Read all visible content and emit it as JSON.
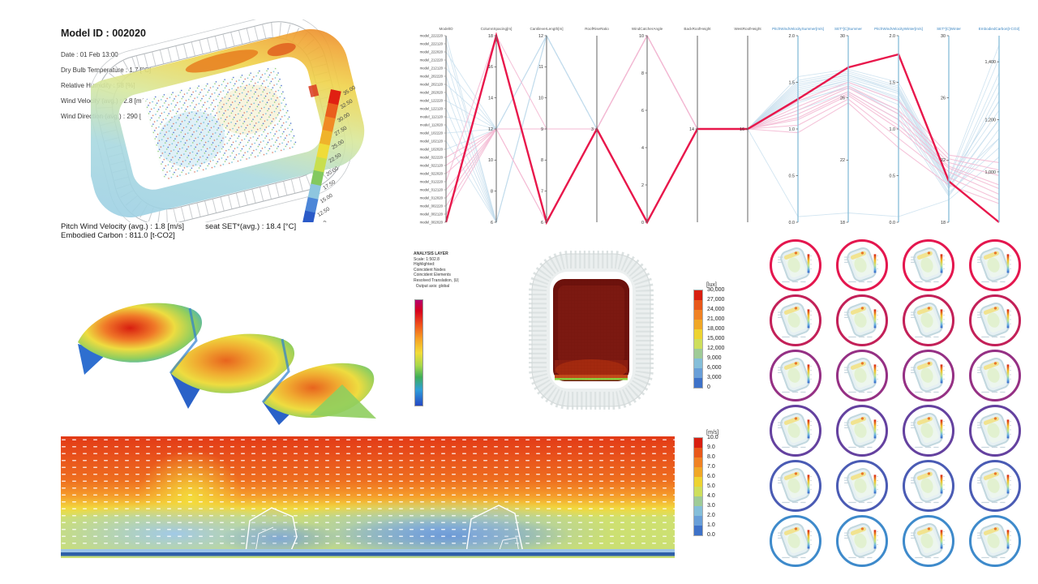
{
  "model_summary": {
    "title": "Model ID : 002020",
    "lines": [
      "Date : 01 Feb 13:00",
      "Dry Bulb Temperature : 1.7 [°C]",
      "Relative Humidity : 58 [%]",
      "Wind Velocity (avg.) : 2.8 [m/s]",
      "Wind Direction (avg.) : 290 [°]"
    ],
    "footer": [
      "Pitch Wind Velocity (avg.) : 1.8 [m/s]",
      "seat SET*(avg.) : 18.4 [°C]",
      "Embodied Carbon : 811.0 [t-CO2]"
    ]
  },
  "analysis_layer": {
    "lines": [
      "ANALYSIS LAYER",
      "Scale: 1:502.8",
      "Highlighted:",
      "Coincident Nodes",
      "Coincident Elements",
      "Resolved Translation, |U|",
      "  Output axis: global"
    ]
  },
  "chart_data": {
    "temperature_scale": {
      "type": "colorbar",
      "unit": "°C",
      "labels": [
        "35.00",
        "32.50",
        "30.00",
        "27.50",
        "25.00",
        "22.50",
        "20.00",
        "17.50",
        "15.00",
        "12.50",
        "10.00"
      ],
      "colors": [
        "#E02012",
        "#EA5E1D",
        "#F08A26",
        "#EFB32B",
        "#EFDC39",
        "#C8DF4E",
        "#83C95F",
        "#8EC6DF",
        "#4C86D8",
        "#2A5AC8"
      ]
    },
    "lux_scale": {
      "type": "colorbar",
      "unit": "[lux]",
      "labels": [
        "30,000",
        "27,000",
        "24,000",
        "21,000",
        "18,000",
        "15,000",
        "12,000",
        "9,000",
        "6,000",
        "3,000",
        "0"
      ],
      "colors": [
        "#D81E10",
        "#E8581A",
        "#F08224",
        "#F0A727",
        "#EDD331",
        "#CEDE5C",
        "#9FCB97",
        "#85BED9",
        "#699FD8",
        "#3E72C8"
      ]
    },
    "velocity_scale": {
      "type": "colorbar",
      "unit": "[m/s]",
      "labels": [
        "10.0",
        "9.0",
        "8.0",
        "7.0",
        "6.0",
        "5.0",
        "4.0",
        "3.0",
        "2.0",
        "1.0",
        "0.0"
      ],
      "colors": [
        "#D81E10",
        "#E8581A",
        "#F08224",
        "#F0A727",
        "#EDD331",
        "#CEDE5C",
        "#9FCB97",
        "#85BED9",
        "#699FD8",
        "#3E72C8"
      ]
    },
    "parallel_coordinates": {
      "type": "parallel-coordinates",
      "highlight_color": "#E8174B",
      "pink_color": "#F3B9D2",
      "blue_color": "#C3DCEC",
      "axes": [
        {
          "name": "ModelID",
          "ticks": []
        },
        {
          "name": "ColumnSpacing[m]",
          "ticks": [
            "18",
            "16",
            "14",
            "12",
            "10",
            "8",
            "6"
          ]
        },
        {
          "name": "CantileverLength[m]",
          "ticks": [
            "12",
            "11",
            "10",
            "9",
            "8",
            "7",
            "6"
          ]
        },
        {
          "name": "RoofRiseRatio",
          "ticks": [
            "3"
          ],
          "tick_pos": [
            0.5
          ]
        },
        {
          "name": "WindCatcherAngle",
          "ticks": [
            "10",
            "8",
            "6",
            "4",
            "2",
            "0"
          ]
        },
        {
          "name": "BackRoofHeight",
          "ticks": [
            "14"
          ],
          "tick_pos": [
            0.5
          ]
        },
        {
          "name": "WestRoofHeight",
          "ticks": [
            "16"
          ],
          "tick_pos": [
            0.5
          ]
        },
        {
          "name": "PitchWindVelocitySummer[m/s]",
          "blue": true,
          "ticks": [
            "2.0",
            "1.5",
            "1.0",
            "0.5",
            "0.0"
          ]
        },
        {
          "name": "SET*[C]Summer",
          "blue": true,
          "ticks": [
            "30",
            "26",
            "22",
            "18"
          ]
        },
        {
          "name": "PitchWindVelocityWinter[m/s]",
          "blue": true,
          "ticks": [
            "2.0",
            "1.5",
            "1.0",
            "0.5",
            "0.0"
          ]
        },
        {
          "name": "SET*[C]Winter",
          "blue": true,
          "ticks": [
            "30",
            "26",
            "22",
            "18"
          ]
        },
        {
          "name": "EmbodiedCarbon[t-CO2]",
          "blue": true,
          "ticks": [
            "1,400",
            "1,200",
            "1,000"
          ],
          "tick_pos": [
            0.14,
            0.45,
            0.73
          ]
        }
      ],
      "models": [
        "model_222220",
        "model_222120",
        "model_222020",
        "model_212220",
        "model_212120",
        "model_202220",
        "model_202120",
        "model_202020",
        "model_122220",
        "model_122120",
        "model_112120",
        "model_112020",
        "model_102220",
        "model_102120",
        "model_102020",
        "model_022220",
        "model_022120",
        "model_022020",
        "model_012220",
        "model_012120",
        "model_012020",
        "model_002220",
        "model_002120",
        "model_002020"
      ],
      "highlighted_model": "model_002020",
      "lines": [
        {
          "c": "b",
          "y": [
            0.0,
            1.0,
            0.0,
            0.5,
            0.0,
            0.5,
            0.5,
            0.28,
            0.22,
            0.3,
            0.8,
            0.55
          ]
        },
        {
          "c": "b",
          "y": [
            0.043,
            1.0,
            0.0,
            0.5,
            0.0,
            0.5,
            0.5,
            0.32,
            0.25,
            0.35,
            0.82,
            0.45
          ]
        },
        {
          "c": "b",
          "y": [
            0.087,
            0.5,
            0.0,
            0.5,
            0.0,
            0.5,
            0.5,
            0.25,
            0.2,
            0.28,
            0.78,
            0.35
          ]
        },
        {
          "c": "b",
          "y": [
            0.13,
            1.0,
            0.0,
            0.5,
            0.0,
            0.5,
            0.5,
            0.35,
            0.28,
            0.4,
            0.84,
            0.6
          ]
        },
        {
          "c": "b",
          "y": [
            0.174,
            0.5,
            0.0,
            0.5,
            0.0,
            0.5,
            0.5,
            0.3,
            0.24,
            0.33,
            0.8,
            0.25
          ]
        },
        {
          "c": "b",
          "y": [
            0.217,
            1.0,
            0.0,
            0.5,
            0.0,
            0.5,
            0.5,
            0.22,
            0.18,
            0.25,
            0.76,
            0.05
          ]
        },
        {
          "c": "b",
          "y": [
            0.261,
            0.5,
            0.0,
            0.5,
            0.0,
            0.5,
            0.5,
            0.4,
            0.3,
            0.45,
            0.86,
            0.5
          ]
        },
        {
          "c": "b",
          "y": [
            0.304,
            1.0,
            0.0,
            0.5,
            0.0,
            0.5,
            0.5,
            0.27,
            0.21,
            0.3,
            0.79,
            0.4
          ]
        },
        {
          "c": "b",
          "y": [
            0.348,
            0.5,
            0.0,
            0.5,
            0.0,
            0.5,
            0.5,
            0.97,
            0.95,
            0.97,
            0.88,
            0.65
          ]
        },
        {
          "c": "b",
          "y": [
            0.391,
            1.0,
            0.0,
            0.5,
            0.0,
            0.5,
            0.5,
            0.33,
            0.26,
            0.37,
            0.82,
            0.3
          ]
        },
        {
          "c": "b",
          "y": [
            0.435,
            0.5,
            0.0,
            0.5,
            0.0,
            0.5,
            0.5,
            0.29,
            0.23,
            0.31,
            0.8,
            0.2
          ]
        },
        {
          "c": "b",
          "y": [
            0.478,
            1.0,
            0.0,
            0.5,
            0.0,
            0.5,
            0.5,
            0.24,
            0.19,
            0.27,
            0.77,
            0.12
          ]
        },
        {
          "c": "b",
          "y": [
            0.522,
            0.5,
            0.0,
            0.5,
            0.0,
            0.5,
            0.5,
            0.36,
            0.27,
            0.42,
            0.85,
            0.55
          ]
        },
        {
          "c": "b",
          "y": [
            0.565,
            1.0,
            0.0,
            0.5,
            0.0,
            0.5,
            0.5,
            0.31,
            0.24,
            0.34,
            0.81,
            0.45
          ]
        },
        {
          "c": "b",
          "y": [
            0.609,
            0.5,
            0.0,
            0.5,
            0.0,
            0.5,
            0.5,
            0.26,
            0.21,
            0.29,
            0.78,
            0.35
          ]
        },
        {
          "c": "p",
          "y": [
            0.652,
            0.5,
            0.5,
            0.5,
            0.0,
            0.5,
            0.5,
            0.42,
            0.3,
            0.45,
            0.7,
            0.8
          ]
        },
        {
          "c": "p",
          "y": [
            0.696,
            0.5,
            0.5,
            0.5,
            0.0,
            0.5,
            0.5,
            0.38,
            0.27,
            0.4,
            0.66,
            0.72
          ]
        },
        {
          "c": "p",
          "y": [
            0.739,
            0.5,
            1.0,
            0.5,
            0.0,
            0.5,
            0.5,
            0.45,
            0.32,
            0.5,
            0.73,
            0.85
          ]
        },
        {
          "c": "p",
          "y": [
            0.783,
            0.0,
            0.5,
            0.5,
            0.0,
            0.5,
            0.5,
            0.35,
            0.25,
            0.35,
            0.64,
            0.68
          ]
        },
        {
          "c": "p",
          "y": [
            0.826,
            0.5,
            0.5,
            0.5,
            0.0,
            0.5,
            0.5,
            0.48,
            0.34,
            0.55,
            0.76,
            0.88
          ]
        },
        {
          "c": "p",
          "y": [
            0.87,
            0.5,
            1.0,
            0.5,
            0.0,
            0.5,
            0.5,
            0.4,
            0.28,
            0.42,
            0.68,
            0.75
          ]
        },
        {
          "c": "p",
          "y": [
            0.913,
            0.5,
            0.5,
            0.5,
            0.0,
            0.5,
            0.5,
            0.52,
            0.36,
            0.6,
            0.8,
            0.9
          ]
        },
        {
          "c": "p",
          "y": [
            0.957,
            0.5,
            0.5,
            0.5,
            0.0,
            0.5,
            0.5,
            0.44,
            0.31,
            0.48,
            0.71,
            0.82
          ]
        },
        {
          "c": "r",
          "y": [
            1.0,
            0.0,
            1.0,
            0.5,
            1.0,
            0.5,
            0.5,
            0.34,
            0.17,
            0.1,
            0.78,
            1.0
          ]
        }
      ]
    },
    "surface_plot": {
      "type": "heatmap-surface",
      "hotspots": 3,
      "palette": [
        "#D81E10",
        "#F0A830",
        "#EEDC40",
        "#90CE5E",
        "#3FAECB",
        "#2E7FD0"
      ]
    },
    "stadium_plan": {
      "type": "heatmap",
      "unit": "lux",
      "value_range": [
        0,
        30000
      ]
    },
    "cfd_section": {
      "type": "heatmap",
      "unit": "m/s",
      "value_range": [
        0,
        10
      ],
      "flow_direction": "left-to-right"
    },
    "thumbnail_grid": {
      "rows": 6,
      "cols": 4,
      "ring_colors": [
        "#E4164E",
        "#C32058",
        "#953084",
        "#64419F",
        "#4A5BB4",
        "#3E8ACB"
      ]
    }
  }
}
